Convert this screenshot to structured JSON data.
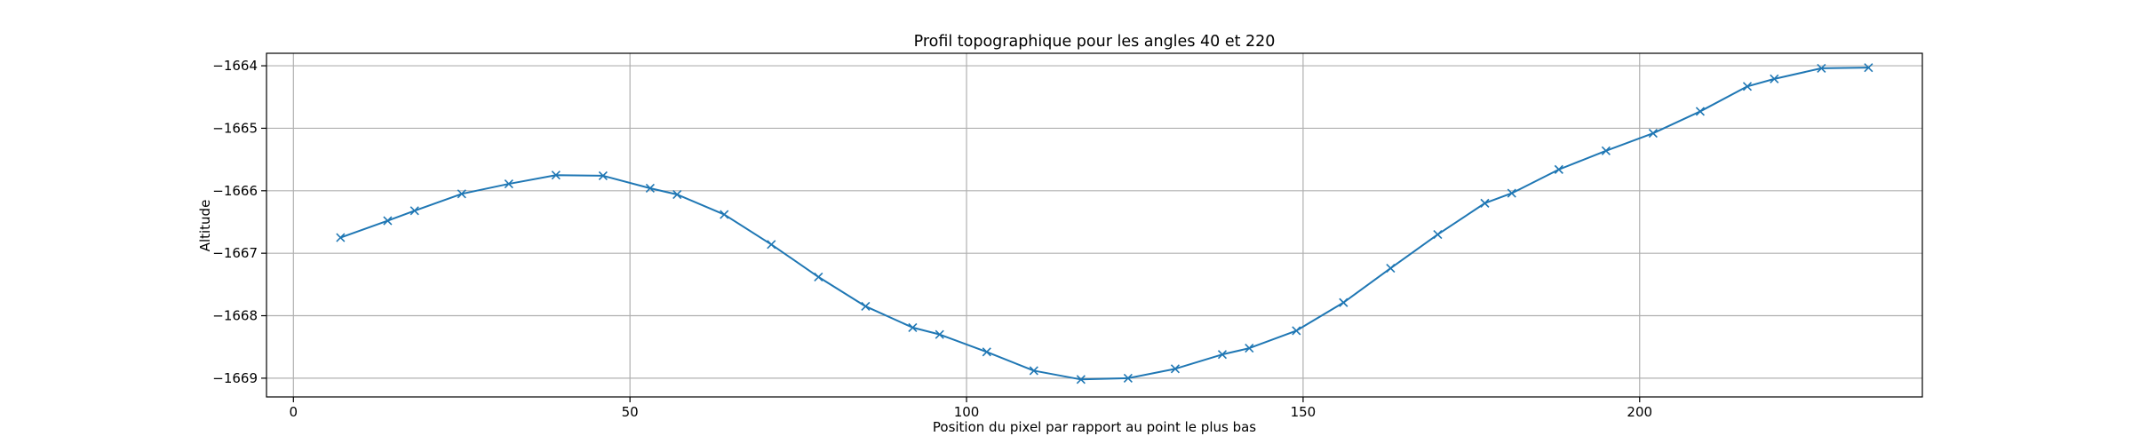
{
  "chart_data": {
    "type": "line",
    "title": "Profil topographique pour les angles 40 et 220",
    "xlabel": "Position du pixel par rapport au point le plus bas",
    "ylabel": "Altitude",
    "xlim": [
      -4,
      242
    ],
    "ylim": [
      -1669.3,
      -1663.8
    ],
    "xticks": [
      0,
      50,
      100,
      150,
      200
    ],
    "yticks": [
      -1664,
      -1665,
      -1666,
      -1667,
      -1668,
      -1669
    ],
    "grid": true,
    "series": [
      {
        "color": "#1f77b4",
        "marker": "x",
        "x": [
          7,
          14,
          18,
          25,
          32,
          39,
          46,
          53,
          57,
          64,
          71,
          78,
          85,
          92,
          96,
          103,
          110,
          117,
          124,
          131,
          138,
          142,
          149,
          156,
          163,
          170,
          177,
          181,
          188,
          195,
          202,
          209,
          216,
          220,
          227,
          234
        ],
        "y": [
          -1666.75,
          -1666.48,
          -1666.32,
          -1666.05,
          -1665.89,
          -1665.75,
          -1665.76,
          -1665.96,
          -1666.06,
          -1666.38,
          -1666.86,
          -1667.38,
          -1667.85,
          -1668.19,
          -1668.3,
          -1668.58,
          -1668.88,
          -1669.02,
          -1669.0,
          -1668.85,
          -1668.62,
          -1668.52,
          -1668.24,
          -1667.79,
          -1667.24,
          -1666.7,
          -1666.2,
          -1666.04,
          -1665.66,
          -1665.36,
          -1665.08,
          -1664.73,
          -1664.33,
          -1664.21,
          -1664.04,
          -1664.03
        ]
      }
    ]
  }
}
